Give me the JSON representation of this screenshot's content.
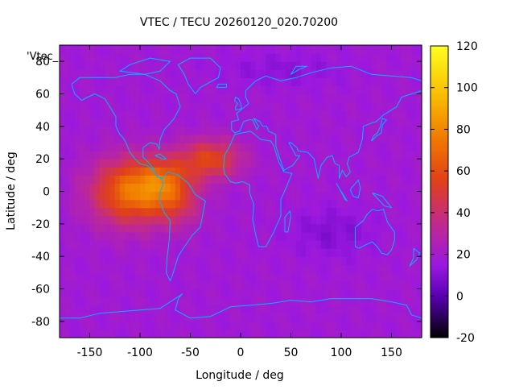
{
  "chart_data": {
    "type": "heatmap",
    "title": "VTEC / TECU 20260120_020.70200",
    "xlabel": "Longitude / deg",
    "ylabel": "Latitude / deg",
    "key_label": "'Vtec_",
    "xlim": [
      -180,
      180
    ],
    "ylim": [
      -90,
      90
    ],
    "x_ticks": [
      -150,
      -100,
      -50,
      0,
      50,
      100,
      150
    ],
    "y_ticks": [
      -80,
      -60,
      -40,
      -20,
      0,
      20,
      40,
      60,
      80
    ],
    "colorbar": {
      "range": [
        -20,
        120
      ],
      "ticks": [
        -20,
        0,
        20,
        40,
        60,
        80,
        100,
        120
      ],
      "palette": [
        "#000000",
        "#5a00b4",
        "#9a18e0",
        "#c22a8c",
        "#e0401a",
        "#f07800",
        "#f8b800",
        "#ffff20"
      ],
      "palette_stops": [
        -20,
        0,
        15,
        35,
        55,
        75,
        95,
        120
      ]
    },
    "grid_step_deg": 5,
    "background_vtec": 18,
    "anomalies": [
      {
        "lon": -110,
        "lat": 0,
        "sigma_lon": 38,
        "sigma_lat": 20,
        "amplitude": 52
      },
      {
        "lon": -75,
        "lat": 5,
        "sigma_lon": 28,
        "sigma_lat": 16,
        "amplitude": 36
      },
      {
        "lon": -30,
        "lat": 20,
        "sigma_lon": 30,
        "sigma_lat": 12,
        "amplitude": 38
      },
      {
        "lon": -60,
        "lat": -10,
        "sigma_lon": 22,
        "sigma_lat": 14,
        "amplitude": 14
      },
      {
        "lon": 90,
        "lat": -25,
        "sigma_lon": 40,
        "sigma_lat": 15,
        "amplitude": -8
      },
      {
        "lon": 40,
        "lat": 75,
        "sigma_lon": 60,
        "sigma_lat": 10,
        "amplitude": -6
      }
    ],
    "coastline_color": "#00b4ff"
  }
}
